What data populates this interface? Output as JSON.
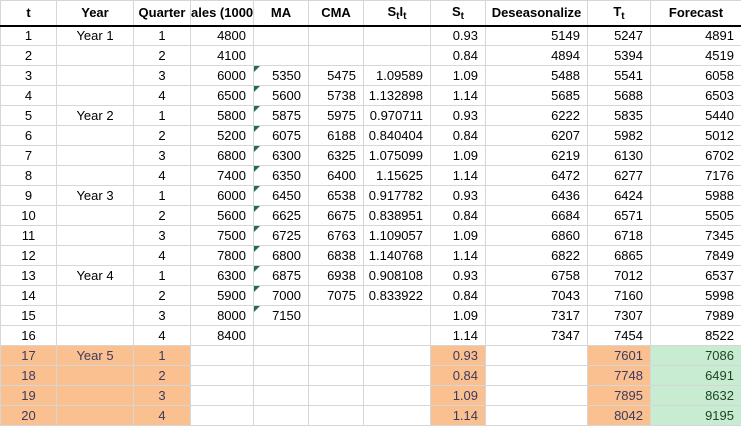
{
  "colors": {
    "highlight_orange": "#fac090",
    "forecast_green": "#c8ecd2",
    "error_indicator_green": "#1e7145",
    "gridline": "#d6d6d6",
    "header_underline": "#000000"
  },
  "table": {
    "headers": [
      {
        "label": "t"
      },
      {
        "label": "Year"
      },
      {
        "label": "Quarter"
      },
      {
        "label": "ales (1000s"
      },
      {
        "label": "MA"
      },
      {
        "label": "CMA"
      },
      {
        "main": "S",
        "sub": "t",
        "main2": "I",
        "sub2": "t"
      },
      {
        "main": "S",
        "sub": "t"
      },
      {
        "label": "Deseasonalize"
      },
      {
        "main": "T",
        "sub": "t"
      },
      {
        "label": "Forecast"
      }
    ],
    "rows": [
      {
        "t": "1",
        "year": "Year 1",
        "quarter": "1",
        "sales": "4800",
        "ma": "",
        "cma": "",
        "stit": "",
        "st": "0.93",
        "deseason": "5149",
        "tt": "5247",
        "forecast": "4891",
        "highlight": false,
        "ma_flag": false
      },
      {
        "t": "2",
        "year": "",
        "quarter": "2",
        "sales": "4100",
        "ma": "",
        "cma": "",
        "stit": "",
        "st": "0.84",
        "deseason": "4894",
        "tt": "5394",
        "forecast": "4519",
        "highlight": false,
        "ma_flag": false
      },
      {
        "t": "3",
        "year": "",
        "quarter": "3",
        "sales": "6000",
        "ma": "5350",
        "cma": "5475",
        "stit": "1.09589",
        "st": "1.09",
        "deseason": "5488",
        "tt": "5541",
        "forecast": "6058",
        "highlight": false,
        "ma_flag": true
      },
      {
        "t": "4",
        "year": "",
        "quarter": "4",
        "sales": "6500",
        "ma": "5600",
        "cma": "5738",
        "stit": "1.132898",
        "st": "1.14",
        "deseason": "5685",
        "tt": "5688",
        "forecast": "6503",
        "highlight": false,
        "ma_flag": true
      },
      {
        "t": "5",
        "year": "Year 2",
        "quarter": "1",
        "sales": "5800",
        "ma": "5875",
        "cma": "5975",
        "stit": "0.970711",
        "st": "0.93",
        "deseason": "6222",
        "tt": "5835",
        "forecast": "5440",
        "highlight": false,
        "ma_flag": true
      },
      {
        "t": "6",
        "year": "",
        "quarter": "2",
        "sales": "5200",
        "ma": "6075",
        "cma": "6188",
        "stit": "0.840404",
        "st": "0.84",
        "deseason": "6207",
        "tt": "5982",
        "forecast": "5012",
        "highlight": false,
        "ma_flag": true
      },
      {
        "t": "7",
        "year": "",
        "quarter": "3",
        "sales": "6800",
        "ma": "6300",
        "cma": "6325",
        "stit": "1.075099",
        "st": "1.09",
        "deseason": "6219",
        "tt": "6130",
        "forecast": "6702",
        "highlight": false,
        "ma_flag": true
      },
      {
        "t": "8",
        "year": "",
        "quarter": "4",
        "sales": "7400",
        "ma": "6350",
        "cma": "6400",
        "stit": "1.15625",
        "st": "1.14",
        "deseason": "6472",
        "tt": "6277",
        "forecast": "7176",
        "highlight": false,
        "ma_flag": true
      },
      {
        "t": "9",
        "year": "Year 3",
        "quarter": "1",
        "sales": "6000",
        "ma": "6450",
        "cma": "6538",
        "stit": "0.917782",
        "st": "0.93",
        "deseason": "6436",
        "tt": "6424",
        "forecast": "5988",
        "highlight": false,
        "ma_flag": true
      },
      {
        "t": "10",
        "year": "",
        "quarter": "2",
        "sales": "5600",
        "ma": "6625",
        "cma": "6675",
        "stit": "0.838951",
        "st": "0.84",
        "deseason": "6684",
        "tt": "6571",
        "forecast": "5505",
        "highlight": false,
        "ma_flag": true
      },
      {
        "t": "11",
        "year": "",
        "quarter": "3",
        "sales": "7500",
        "ma": "6725",
        "cma": "6763",
        "stit": "1.109057",
        "st": "1.09",
        "deseason": "6860",
        "tt": "6718",
        "forecast": "7345",
        "highlight": false,
        "ma_flag": true
      },
      {
        "t": "12",
        "year": "",
        "quarter": "4",
        "sales": "7800",
        "ma": "6800",
        "cma": "6838",
        "stit": "1.140768",
        "st": "1.14",
        "deseason": "6822",
        "tt": "6865",
        "forecast": "7849",
        "highlight": false,
        "ma_flag": true
      },
      {
        "t": "13",
        "year": "Year 4",
        "quarter": "1",
        "sales": "6300",
        "ma": "6875",
        "cma": "6938",
        "stit": "0.908108",
        "st": "0.93",
        "deseason": "6758",
        "tt": "7012",
        "forecast": "6537",
        "highlight": false,
        "ma_flag": true
      },
      {
        "t": "14",
        "year": "",
        "quarter": "2",
        "sales": "5900",
        "ma": "7000",
        "cma": "7075",
        "stit": "0.833922",
        "st": "0.84",
        "deseason": "7043",
        "tt": "7160",
        "forecast": "5998",
        "highlight": false,
        "ma_flag": true
      },
      {
        "t": "15",
        "year": "",
        "quarter": "3",
        "sales": "8000",
        "ma": "7150",
        "cma": "",
        "stit": "",
        "st": "1.09",
        "deseason": "7317",
        "tt": "7307",
        "forecast": "7989",
        "highlight": false,
        "ma_flag": true
      },
      {
        "t": "16",
        "year": "",
        "quarter": "4",
        "sales": "8400",
        "ma": "",
        "cma": "",
        "stit": "",
        "st": "1.14",
        "deseason": "7347",
        "tt": "7454",
        "forecast": "8522",
        "highlight": false,
        "ma_flag": false
      },
      {
        "t": "17",
        "year": "Year 5",
        "quarter": "1",
        "sales": "",
        "ma": "",
        "cma": "",
        "stit": "",
        "st": "0.93",
        "deseason": "",
        "tt": "7601",
        "forecast": "7086",
        "highlight": true,
        "ma_flag": false
      },
      {
        "t": "18",
        "year": "",
        "quarter": "2",
        "sales": "",
        "ma": "",
        "cma": "",
        "stit": "",
        "st": "0.84",
        "deseason": "",
        "tt": "7748",
        "forecast": "6491",
        "highlight": true,
        "ma_flag": false
      },
      {
        "t": "19",
        "year": "",
        "quarter": "3",
        "sales": "",
        "ma": "",
        "cma": "",
        "stit": "",
        "st": "1.09",
        "deseason": "",
        "tt": "7895",
        "forecast": "8632",
        "highlight": true,
        "ma_flag": false
      },
      {
        "t": "20",
        "year": "",
        "quarter": "4",
        "sales": "",
        "ma": "",
        "cma": "",
        "stit": "",
        "st": "1.14",
        "deseason": "",
        "tt": "8042",
        "forecast": "9195",
        "highlight": true,
        "ma_flag": false
      }
    ]
  }
}
